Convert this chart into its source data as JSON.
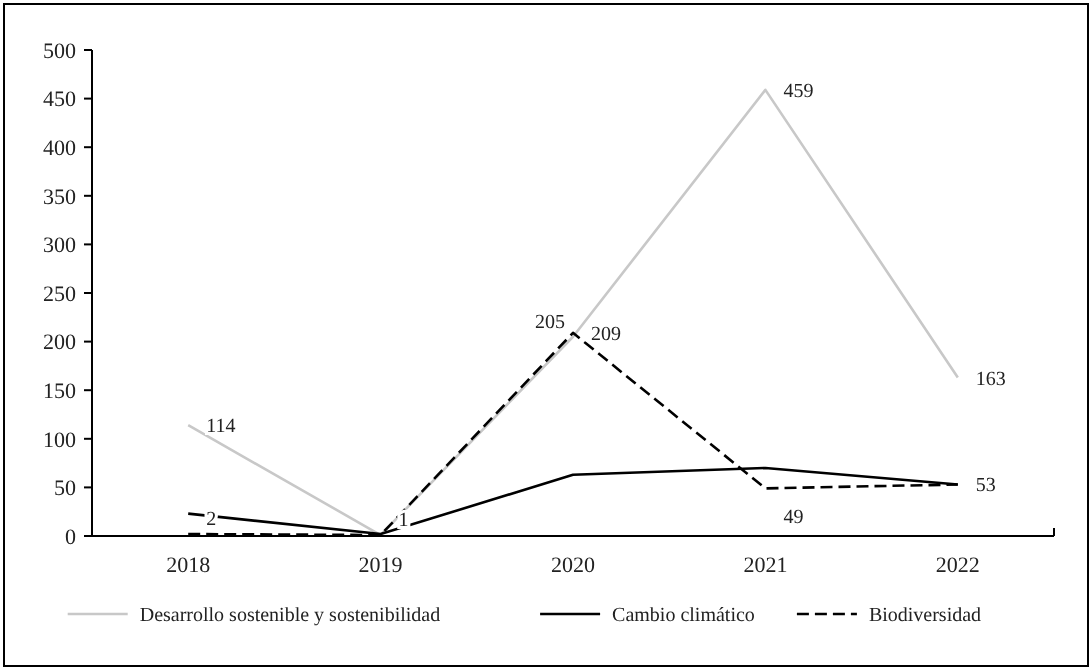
{
  "chart_data": {
    "type": "line",
    "categories": [
      "2018",
      "2019",
      "2020",
      "2021",
      "2022"
    ],
    "ylim": [
      0,
      500
    ],
    "yticks": [
      0,
      50,
      100,
      150,
      200,
      250,
      300,
      350,
      400,
      450,
      500
    ],
    "grid": false,
    "legend": "bottom",
    "series": [
      {
        "name": "Desarrollo sostenible y sostenibilidad",
        "color": "#c8c8c8",
        "line_style": "solid",
        "values": [
          114,
          1,
          205,
          459,
          163
        ],
        "value_labels": [
          "114",
          null,
          "205",
          "459",
          "163"
        ]
      },
      {
        "name": "Cambio climático",
        "color": "#000000",
        "line_style": "solid",
        "values": [
          23,
          2,
          63,
          70,
          53
        ]
      },
      {
        "name": "Biodiversidad",
        "color": "#000000",
        "line_style": "dashed",
        "values": [
          2,
          1,
          209,
          49,
          53
        ],
        "value_labels": [
          "2",
          "1",
          "209",
          "49",
          "53"
        ]
      }
    ]
  }
}
